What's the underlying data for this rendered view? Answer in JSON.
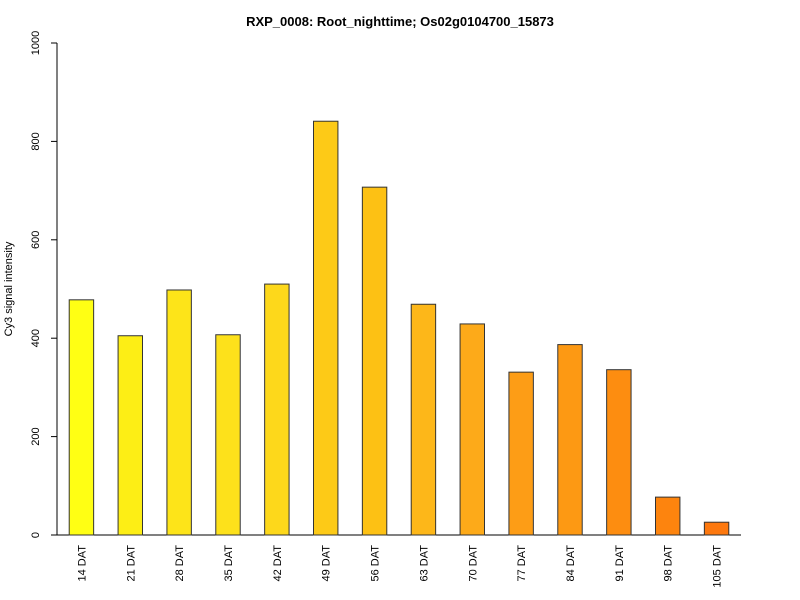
{
  "chart_data": {
    "type": "bar",
    "title": "RXP_0008: Root_nighttime; Os02g0104700_15873",
    "xlabel": "",
    "ylabel": "Cy3 signal intensity",
    "ylim": [
      0,
      1000
    ],
    "yticks": [
      0,
      200,
      400,
      600,
      800,
      1000
    ],
    "categories": [
      "14 DAT",
      "21 DAT",
      "28 DAT",
      "35 DAT",
      "42 DAT",
      "49 DAT",
      "56 DAT",
      "63 DAT",
      "70 DAT",
      "77 DAT",
      "84 DAT",
      "91 DAT",
      "98 DAT",
      "105 DAT"
    ],
    "values": [
      478,
      405,
      498,
      407,
      510,
      841,
      707,
      469,
      429,
      331,
      387,
      336,
      77,
      26
    ],
    "colors": [
      "#ffff14",
      "#fdee15",
      "#fde419",
      "#fde11b",
      "#fdd81b",
      "#fdca17",
      "#fdc114",
      "#fdb719",
      "#fdaa19",
      "#fd9d16",
      "#fd9913",
      "#fd8d10",
      "#fd840e",
      "#fd780e"
    ],
    "grid": false
  }
}
